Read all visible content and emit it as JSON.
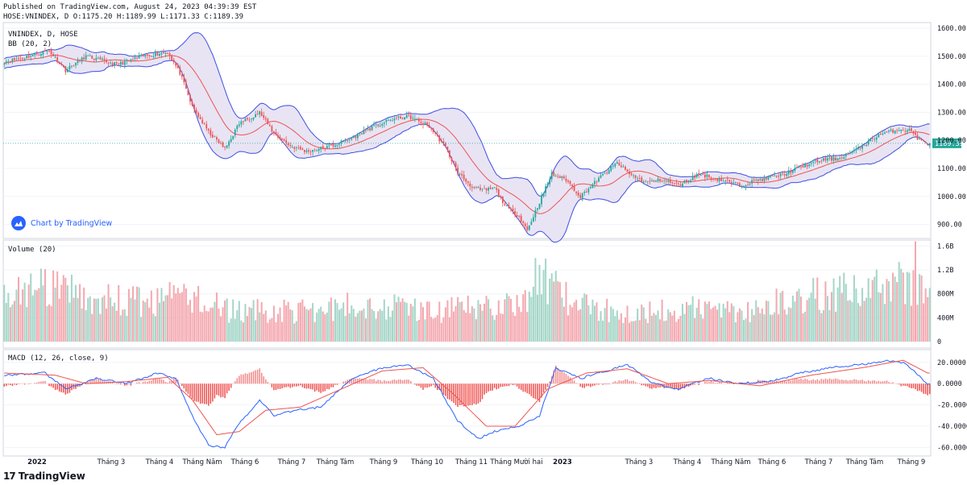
{
  "header": {
    "published": "Published on TradingView.com, August 24, 2023 04:39:39 EST",
    "ohlc": "HOSE:VNINDEX, D O:1175.20 H:1189.99 L:1171.33 C:1189.39"
  },
  "panes": {
    "price_symbol": "VNINDEX, D, HOSE",
    "price_indicator": "BB (20, 2)",
    "volume_label": "Volume (20)",
    "macd_label": "MACD (12, 26, close, 9)"
  },
  "badge": {
    "text": "Chart by TradingView",
    "icon": "tradingview-cloud-icon"
  },
  "footer": {
    "logo_text": "17",
    "brand": "TradingView",
    "icon": "tradingview-logo-icon"
  },
  "last_price_label": "1189.39",
  "colors": {
    "up": "#26a69a",
    "down": "#ef5350",
    "vol_up": "#a5d6c8",
    "vol_down": "#f4a9b0",
    "bb_band": "#3f4fe0",
    "bb_fill": "#e8e4f4",
    "basis": "#ef5350",
    "macd": "#2962ff",
    "signal": "#ef5350",
    "last_price": "#26a69a"
  },
  "chart_data": [
    {
      "type": "candlestick",
      "title": "VNINDEX, D, HOSE",
      "indicator": "BB (20, 2)",
      "ylim": [
        850,
        1620
      ],
      "y_ticks": [
        "1600.00",
        "1500.00",
        "1400.00",
        "1300.00",
        "1200.00",
        "1100.00",
        "1000.00",
        "900.00"
      ],
      "last_value": 1189.39,
      "x_ticks": [
        "2022",
        "Tháng 3",
        "Tháng 4",
        "Tháng Năm",
        "Tháng 6",
        "Tháng 7",
        "Tháng Tám",
        "Tháng 9",
        "Tháng 10",
        "Tháng 11",
        "Tháng Mười hai",
        "2023",
        "Tháng 3",
        "Tháng 4",
        "Tháng Năm",
        "Tháng 6",
        "Tháng 7",
        "Tháng Tám",
        "Tháng 9"
      ],
      "close_keypoints": [
        [
          0,
          1480
        ],
        [
          12,
          1500
        ],
        [
          22,
          1520
        ],
        [
          30,
          1450
        ],
        [
          40,
          1500
        ],
        [
          55,
          1470
        ],
        [
          68,
          1500
        ],
        [
          80,
          1515
        ],
        [
          86,
          1440
        ],
        [
          92,
          1320
        ],
        [
          100,
          1230
        ],
        [
          108,
          1170
        ],
        [
          115,
          1260
        ],
        [
          125,
          1300
        ],
        [
          132,
          1225
        ],
        [
          140,
          1180
        ],
        [
          148,
          1160
        ],
        [
          158,
          1175
        ],
        [
          168,
          1200
        ],
        [
          178,
          1240
        ],
        [
          190,
          1275
        ],
        [
          198,
          1285
        ],
        [
          208,
          1250
        ],
        [
          216,
          1175
        ],
        [
          222,
          1085
        ],
        [
          228,
          1040
        ],
        [
          234,
          1020
        ],
        [
          240,
          1030
        ],
        [
          246,
          960
        ],
        [
          252,
          930
        ],
        [
          256,
          880
        ],
        [
          262,
          980
        ],
        [
          268,
          1080
        ],
        [
          275,
          1060
        ],
        [
          282,
          1000
        ],
        [
          292,
          1070
        ],
        [
          300,
          1120
        ],
        [
          306,
          1080
        ],
        [
          314,
          1050
        ],
        [
          322,
          1060
        ],
        [
          330,
          1040
        ],
        [
          340,
          1080
        ],
        [
          350,
          1060
        ],
        [
          360,
          1040
        ],
        [
          370,
          1060
        ],
        [
          380,
          1075
        ],
        [
          390,
          1105
        ],
        [
          400,
          1130
        ],
        [
          408,
          1135
        ],
        [
          418,
          1170
        ],
        [
          428,
          1220
        ],
        [
          438,
          1240
        ],
        [
          444,
          1235
        ],
        [
          448,
          1200
        ],
        [
          452,
          1189
        ]
      ],
      "volume": {
        "label": "Volume (20)",
        "ylim": [
          0,
          1.7
        ],
        "y_ticks": [
          "1.6B",
          "1.2B",
          "800M",
          "400M",
          "0"
        ],
        "keypoints": [
          [
            0,
            0.85
          ],
          [
            15,
            0.95
          ],
          [
            30,
            0.9
          ],
          [
            50,
            0.75
          ],
          [
            70,
            0.7
          ],
          [
            90,
            0.85
          ],
          [
            110,
            0.55
          ],
          [
            130,
            0.55
          ],
          [
            150,
            0.55
          ],
          [
            170,
            0.65
          ],
          [
            190,
            0.65
          ],
          [
            210,
            0.55
          ],
          [
            230,
            0.6
          ],
          [
            250,
            0.7
          ],
          [
            265,
            1.1
          ],
          [
            280,
            0.65
          ],
          [
            300,
            0.55
          ],
          [
            320,
            0.55
          ],
          [
            340,
            0.6
          ],
          [
            360,
            0.55
          ],
          [
            380,
            0.7
          ],
          [
            400,
            0.85
          ],
          [
            420,
            0.95
          ],
          [
            440,
            1.05
          ],
          [
            450,
            0.9
          ]
        ],
        "spikes": [
          [
            260,
            1.4
          ],
          [
            264,
            1.2
          ],
          [
            446,
            1.68
          ]
        ]
      },
      "macd": {
        "label": "MACD (12, 26, close, 9)",
        "ylim": [
          -68,
          32
        ],
        "y_ticks": [
          "20.0000",
          "0.0000",
          "-20.0000",
          "-40.0000",
          "-60.0000"
        ],
        "macd_keypoints": [
          [
            0,
            8
          ],
          [
            20,
            10
          ],
          [
            30,
            -5
          ],
          [
            45,
            5
          ],
          [
            60,
            0
          ],
          [
            75,
            10
          ],
          [
            84,
            5
          ],
          [
            92,
            -30
          ],
          [
            100,
            -58
          ],
          [
            108,
            -60
          ],
          [
            114,
            -40
          ],
          [
            125,
            -15
          ],
          [
            132,
            -30
          ],
          [
            142,
            -25
          ],
          [
            155,
            -22
          ],
          [
            170,
            5
          ],
          [
            185,
            15
          ],
          [
            198,
            17
          ],
          [
            210,
            5
          ],
          [
            222,
            -35
          ],
          [
            232,
            -52
          ],
          [
            240,
            -45
          ],
          [
            252,
            -40
          ],
          [
            262,
            -30
          ],
          [
            270,
            15
          ],
          [
            282,
            5
          ],
          [
            295,
            12
          ],
          [
            305,
            18
          ],
          [
            318,
            0
          ],
          [
            330,
            -5
          ],
          [
            345,
            5
          ],
          [
            360,
            0
          ],
          [
            375,
            2
          ],
          [
            390,
            10
          ],
          [
            405,
            15
          ],
          [
            420,
            18
          ],
          [
            432,
            22
          ],
          [
            440,
            20
          ],
          [
            445,
            12
          ],
          [
            452,
            0
          ]
        ],
        "signal_keypoints": [
          [
            0,
            10
          ],
          [
            25,
            8
          ],
          [
            40,
            0
          ],
          [
            60,
            2
          ],
          [
            80,
            6
          ],
          [
            92,
            -15
          ],
          [
            104,
            -48
          ],
          [
            115,
            -45
          ],
          [
            128,
            -25
          ],
          [
            145,
            -22
          ],
          [
            165,
            -5
          ],
          [
            185,
            12
          ],
          [
            205,
            15
          ],
          [
            220,
            -10
          ],
          [
            236,
            -40
          ],
          [
            250,
            -40
          ],
          [
            266,
            -5
          ],
          [
            285,
            10
          ],
          [
            305,
            14
          ],
          [
            325,
            0
          ],
          [
            345,
            3
          ],
          [
            370,
            -2
          ],
          [
            395,
            8
          ],
          [
            420,
            15
          ],
          [
            440,
            22
          ],
          [
            452,
            10
          ]
        ]
      }
    }
  ]
}
